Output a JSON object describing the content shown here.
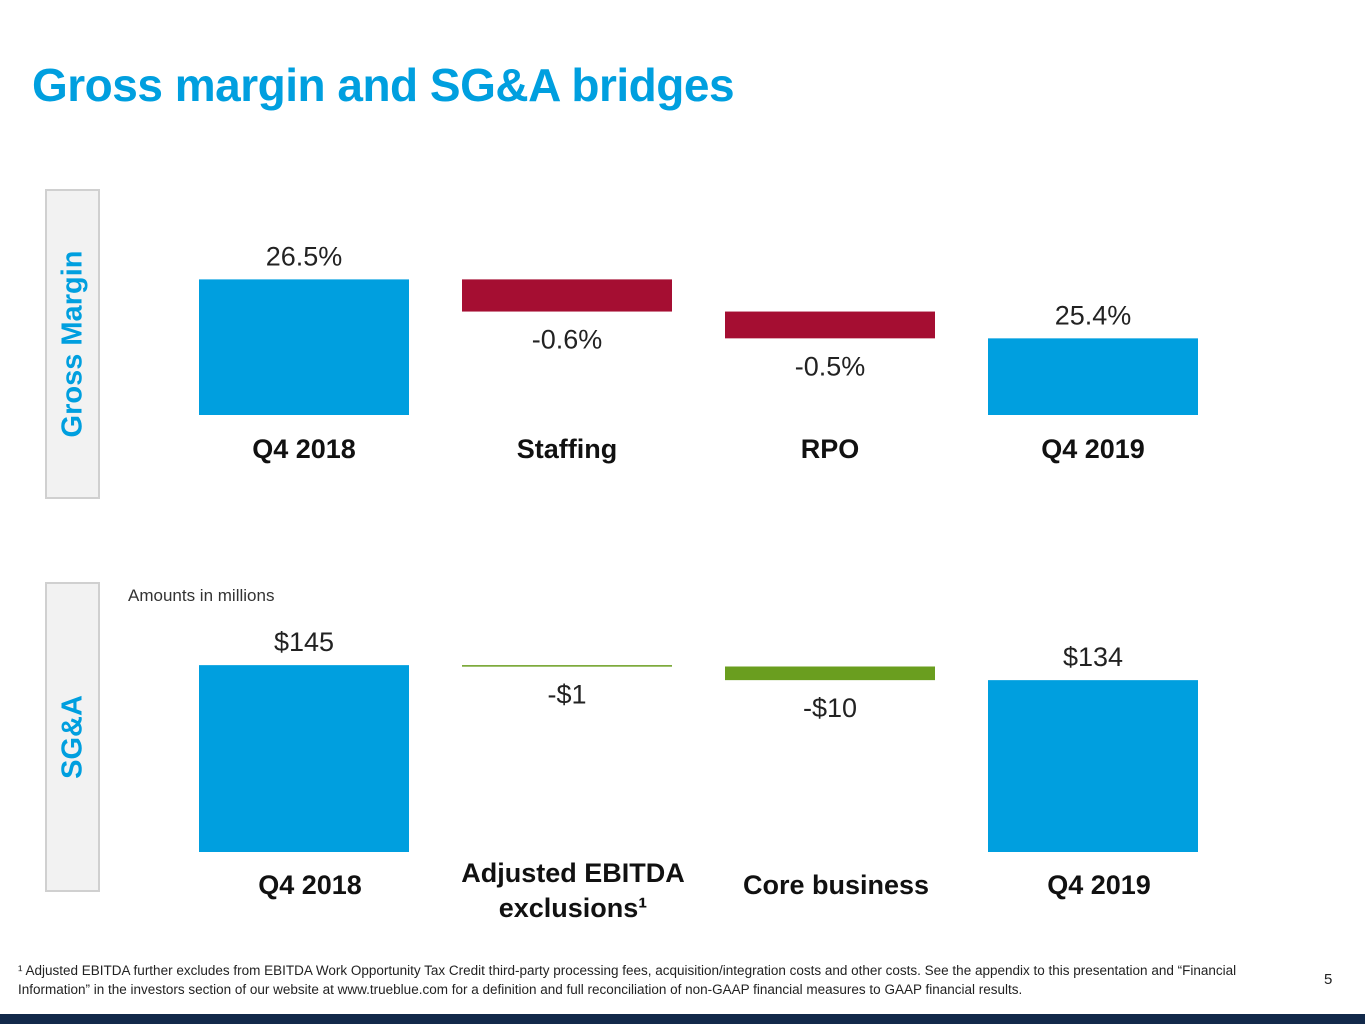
{
  "title": "Gross margin and SG&A bridges",
  "footnote": "¹ Adjusted EBITDA further excludes from EBITDA Work Opportunity Tax Credit third-party processing fees, acquisition/integration costs and other costs. See the appendix to this presentation and “Financial Information” in the investors section of our website at www.trueblue.com for a definition and full reconciliation of non-GAAP financial measures to GAAP financial results.",
  "page_number": "5",
  "colors": {
    "total": "#009fdf",
    "gm_decrease": "#a50e32",
    "sga_decrease": "#6a9e1f",
    "brand": "#009fdf"
  },
  "chart_data": [
    {
      "type": "waterfall",
      "side_label": "Gross Margin",
      "categories": [
        "Q4 2018",
        "Staffing",
        "RPO",
        "Q4 2019"
      ],
      "values": [
        26.5,
        -0.6,
        -0.5,
        25.4
      ],
      "labels": [
        "26.5%",
        "-0.6%",
        "-0.5%",
        "25.4%"
      ],
      "kinds": [
        "total",
        "delta",
        "delta",
        "total"
      ]
    },
    {
      "type": "waterfall",
      "side_label": "SG&A",
      "note": "Amounts in millions",
      "categories": [
        "Q4 2018",
        "Adjusted EBITDA exclusions¹",
        "Core business",
        "Q4 2019"
      ],
      "values": [
        145,
        -1,
        -10,
        134
      ],
      "labels": [
        "$145",
        "-$1",
        "-$10",
        "$134"
      ],
      "kinds": [
        "total",
        "delta",
        "delta",
        "total"
      ]
    }
  ]
}
